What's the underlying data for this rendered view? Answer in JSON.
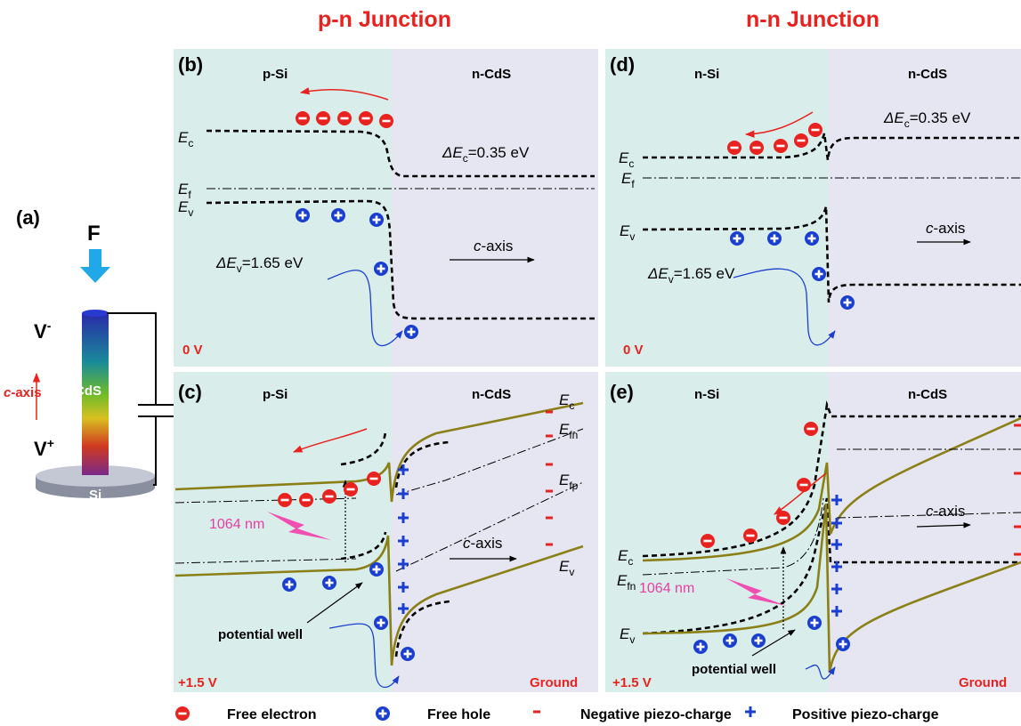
{
  "headers": [
    "p-n Junction",
    "n-n Junction"
  ],
  "panel_a": {
    "label": "(a)",
    "force": "F",
    "v_minus": [
      "V",
      "-"
    ],
    "v_plus": [
      "V",
      "+"
    ],
    "axis": [
      "c",
      "-axis"
    ],
    "cds": "CdS",
    "si": "Si"
  },
  "panels": [
    {
      "label": "(b)",
      "left": "p-Si",
      "right": "n-CdS",
      "bias": "0 V",
      "ec": [
        "E",
        "c"
      ],
      "ef": [
        "E",
        "f"
      ],
      "ev": [
        "E",
        "v"
      ],
      "delta_ec": [
        "ΔE",
        "c",
        "=0.35 eV"
      ],
      "delta_ev": [
        "ΔE",
        "v",
        "=1.65 eV"
      ],
      "axis": [
        "c",
        "-axis"
      ]
    },
    {
      "label": "(c)",
      "left": "p-Si",
      "right": "n-CdS",
      "bias": "+1.5 V",
      "ground": "Ground",
      "ec": [
        "E",
        "c"
      ],
      "efn": [
        "E",
        "fn"
      ],
      "efp": [
        "E",
        "fp"
      ],
      "ev": [
        "E",
        "v"
      ],
      "laser": "1064 nm",
      "axis": [
        "c",
        "-axis"
      ],
      "well": "potential well"
    },
    {
      "label": "(d)",
      "left": "n-Si",
      "right": "n-CdS",
      "bias": "0 V",
      "ec": [
        "E",
        "c"
      ],
      "ef": [
        "E",
        "f"
      ],
      "ev": [
        "E",
        "v"
      ],
      "delta_ec": [
        "ΔE",
        "c",
        "=0.35 eV"
      ],
      "delta_ev": [
        "ΔE",
        "v",
        "=1.65 eV"
      ],
      "axis": [
        "c",
        "-axis"
      ]
    },
    {
      "label": "(e)",
      "left": "n-Si",
      "right": "n-CdS",
      "bias": "+1.5 V",
      "ground": "Ground",
      "ec": [
        "E",
        "c"
      ],
      "efn": [
        "E",
        "fn"
      ],
      "ev": [
        "E",
        "v"
      ],
      "laser": "1064 nm",
      "axis": [
        "c",
        "-axis"
      ],
      "well": "potential well"
    }
  ],
  "legend": [
    "Free electron",
    "Free hole",
    "Negative piezo-charge",
    "Positive piezo-charge"
  ]
}
